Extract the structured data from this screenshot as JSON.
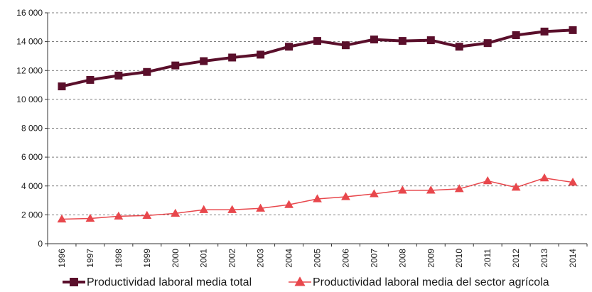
{
  "chart_data": {
    "type": "line",
    "x": [
      "1996",
      "1997",
      "1998",
      "1999",
      "2000",
      "2001",
      "2002",
      "2003",
      "2004",
      "2005",
      "2006",
      "2007",
      "2008",
      "2009",
      "2010",
      "2011",
      "2012",
      "2013",
      "2014"
    ],
    "series": [
      {
        "name": "Productividad laboral media total",
        "color": "#5a0f2b",
        "marker": "square",
        "values": [
          10900,
          11350,
          11650,
          11900,
          12350,
          12650,
          12900,
          13100,
          13650,
          14050,
          13750,
          14150,
          14050,
          14100,
          13650,
          13900,
          14450,
          14700,
          14800
        ]
      },
      {
        "name": "Productividad laboral media del sector agrícola",
        "color": "#e8474c",
        "marker": "triangle",
        "values": [
          1700,
          1750,
          1900,
          1950,
          2100,
          2350,
          2350,
          2450,
          2700,
          3100,
          3250,
          3450,
          3700,
          3700,
          3800,
          4350,
          3900,
          4550,
          4250
        ]
      }
    ],
    "ylim": [
      0,
      16000
    ],
    "yticks": [
      0,
      2000,
      4000,
      6000,
      8000,
      10000,
      12000,
      14000,
      16000
    ],
    "ytick_labels": [
      "0",
      "2 000",
      "4 000",
      "6 000",
      "8 000",
      "10 000",
      "12 000",
      "14 000",
      "16 000"
    ],
    "grid": "horizontal-dashed",
    "legend": "bottom"
  }
}
